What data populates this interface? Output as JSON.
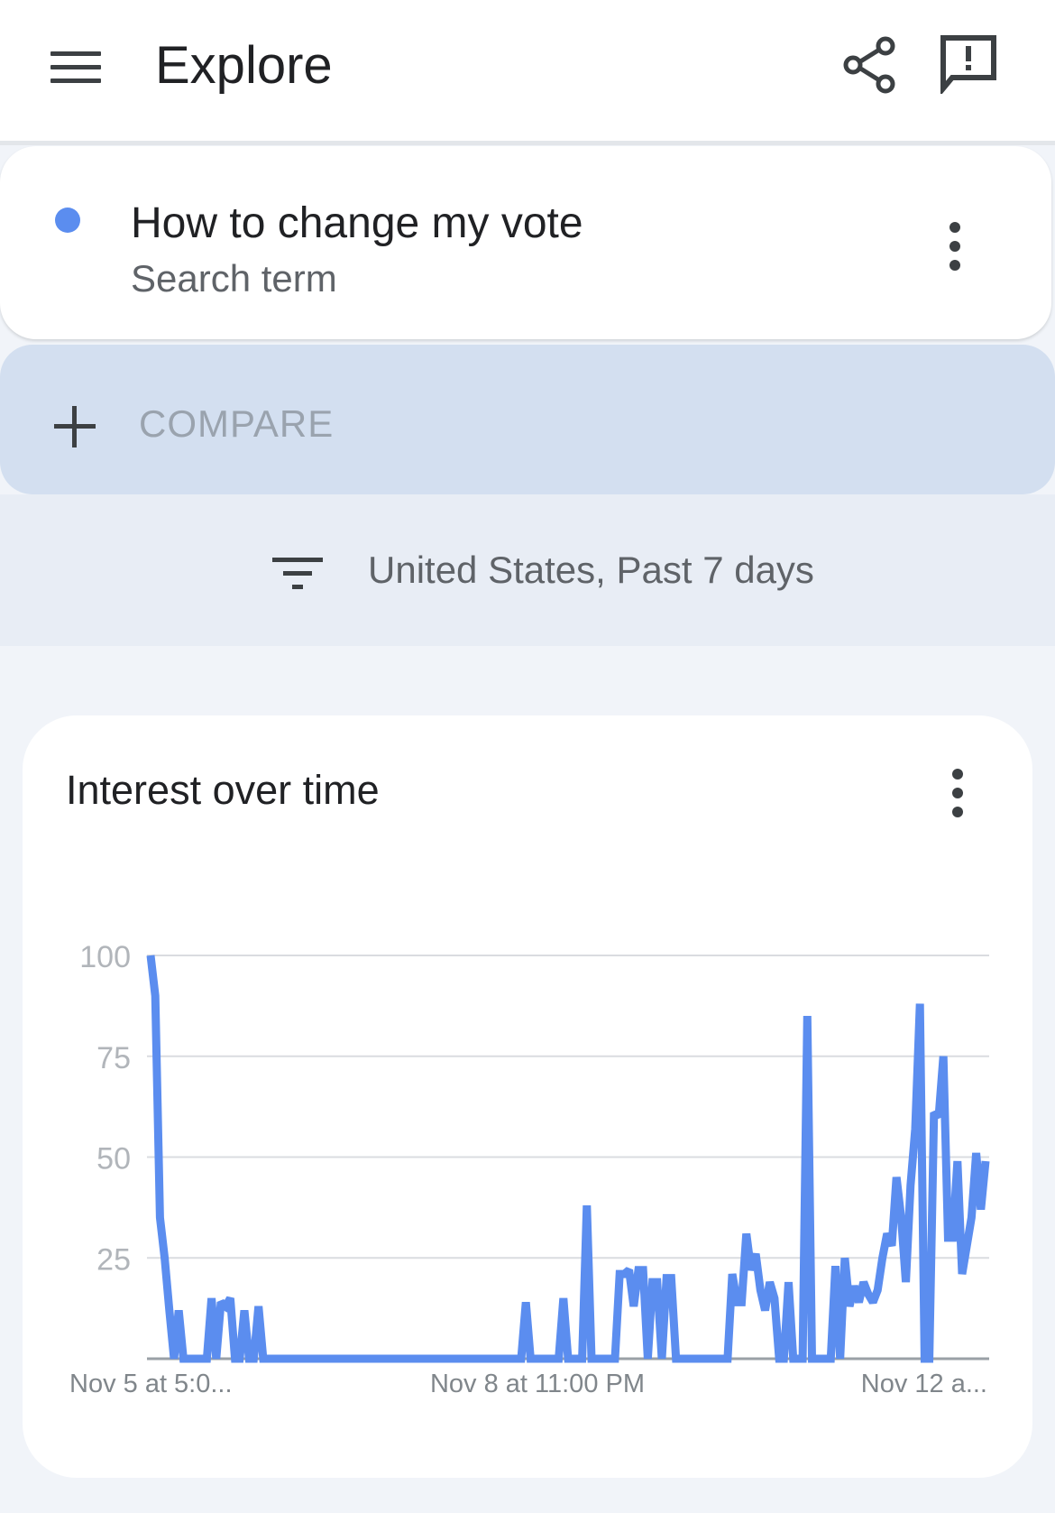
{
  "appbar": {
    "title": "Explore",
    "menu_icon": "menu-icon",
    "share_icon": "share-icon",
    "feedback_icon": "feedback-icon"
  },
  "search_term": {
    "title": "How to change my vote",
    "subtitle": "Search term",
    "dot_color": "#5b8def"
  },
  "compare": {
    "label": "COMPARE"
  },
  "filter": {
    "label": "United States, Past 7 days"
  },
  "card": {
    "title": "Interest over time"
  },
  "colors": {
    "line": "#5b8def",
    "grid": "#dadce0",
    "axis_text": "#80868b"
  },
  "chart_data": {
    "type": "line",
    "title": "",
    "xlabel": "",
    "ylabel": "",
    "ylim": [
      0,
      100
    ],
    "yticks": [
      25,
      50,
      75,
      100
    ],
    "xtick_labels": [
      "Nov 5 at 5:0...",
      "Nov 8 at 11:00 PM",
      "Nov 12 a..."
    ],
    "xtick_positions": [
      0,
      0.465,
      0.93
    ],
    "grid": true,
    "series": [
      {
        "name": "",
        "values": [
          100,
          90,
          35,
          25,
          12,
          0,
          12,
          0,
          0,
          0,
          0,
          0,
          0,
          15,
          0,
          14,
          13,
          15,
          0,
          0,
          12,
          0,
          0,
          13,
          0,
          0,
          0,
          0,
          0,
          0,
          0,
          0,
          0,
          0,
          0,
          0,
          0,
          0,
          0,
          0,
          0,
          0,
          0,
          0,
          0,
          0,
          0,
          0,
          0,
          0,
          0,
          0,
          0,
          0,
          0,
          0,
          0,
          0,
          0,
          0,
          0,
          0,
          0,
          0,
          0,
          0,
          0,
          0,
          0,
          0,
          0,
          0,
          0,
          0,
          0,
          0,
          0,
          0,
          0,
          0,
          14,
          0,
          0,
          0,
          0,
          0,
          0,
          0,
          15,
          0,
          0,
          0,
          0,
          38,
          0,
          0,
          0,
          0,
          0,
          0,
          21,
          21,
          22,
          13,
          22,
          22,
          0,
          19,
          19,
          0,
          20,
          20,
          0,
          0,
          0,
          0,
          0,
          0,
          0,
          0,
          0,
          0,
          0,
          0,
          21,
          14,
          14,
          31,
          22,
          26,
          17,
          12,
          19,
          15,
          0,
          0,
          19,
          0,
          0,
          0,
          85,
          0,
          0,
          0,
          0,
          0,
          23,
          0,
          25,
          13,
          18,
          14,
          19,
          16,
          14,
          17,
          25,
          31,
          28,
          45,
          35,
          19,
          43,
          57,
          88,
          0,
          0,
          61,
          60,
          75,
          30,
          30,
          49,
          21,
          28,
          35,
          51,
          37,
          49
        ]
      }
    ]
  }
}
